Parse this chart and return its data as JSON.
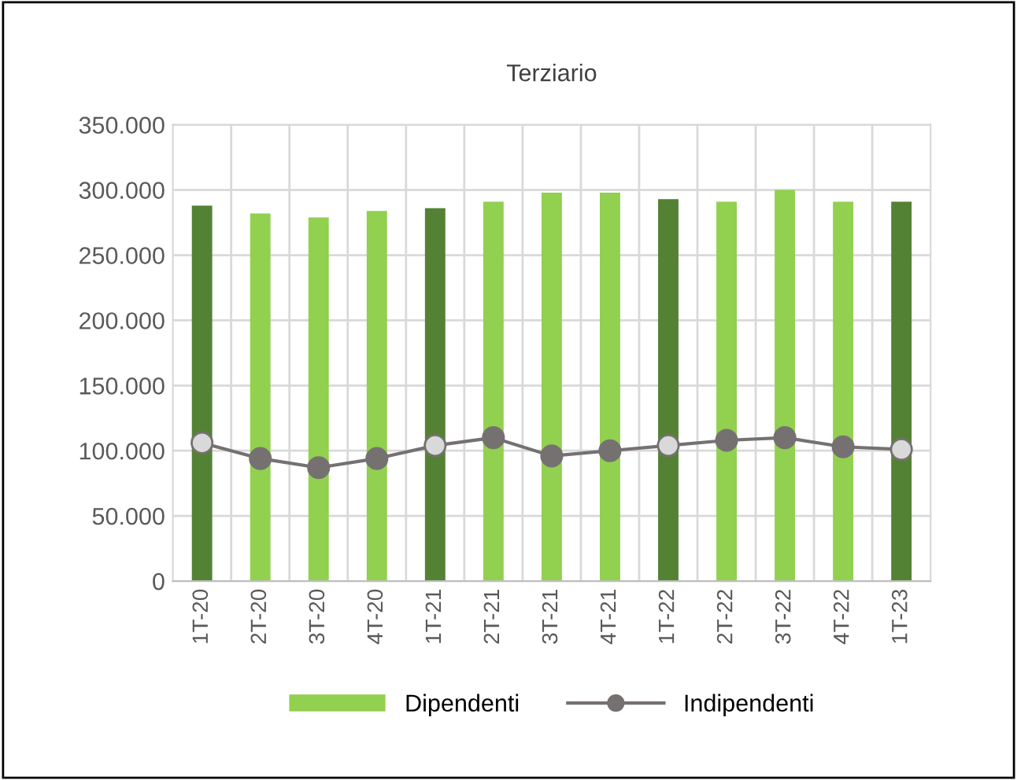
{
  "chart_data": {
    "type": "bar",
    "title": "Terziario",
    "categories": [
      "1T-20",
      "2T-20",
      "3T-20",
      "4T-20",
      "1T-21",
      "2T-21",
      "3T-21",
      "4T-21",
      "1T-22",
      "2T-22",
      "3T-22",
      "4T-22",
      "1T-23"
    ],
    "series": [
      {
        "name": "Dipendenti",
        "color": "#92d050",
        "colors": [
          "#548235",
          "#92d050",
          "#92d050",
          "#92d050",
          "#548235",
          "#92d050",
          "#92d050",
          "#92d050",
          "#548235",
          "#92d050",
          "#92d050",
          "#92d050",
          "#548235"
        ],
        "values": [
          288000,
          282000,
          279000,
          284000,
          286000,
          291000,
          298000,
          298000,
          293000,
          291000,
          300000,
          291000,
          291000
        ]
      },
      {
        "name": "Indipendenti",
        "type": "line",
        "color": "#767171",
        "colors": [
          "#d9d9d9",
          "#767171",
          "#767171",
          "#767171",
          "#d9d9d9",
          "#767171",
          "#767171",
          "#767171",
          "#d9d9d9",
          "#767171",
          "#767171",
          "#767171",
          "#d9d9d9"
        ],
        "marker": "circle",
        "values": [
          106000,
          94000,
          87000,
          94000,
          104000,
          110000,
          96000,
          100000,
          104000,
          108000,
          110000,
          103000,
          101000
        ]
      }
    ],
    "ylim": [
      0,
      350000
    ],
    "yticks": [
      {
        "value": 0,
        "label": "0"
      },
      {
        "value": 50000,
        "label": "50.000"
      },
      {
        "value": 100000,
        "label": "100.000"
      },
      {
        "value": 150000,
        "label": "150.000"
      },
      {
        "value": 200000,
        "label": "200.000"
      },
      {
        "value": 250000,
        "label": "250.000"
      },
      {
        "value": 300000,
        "label": "300.000"
      },
      {
        "value": 350000,
        "label": "350.000"
      }
    ],
    "grid": true,
    "legend": "bottom"
  }
}
